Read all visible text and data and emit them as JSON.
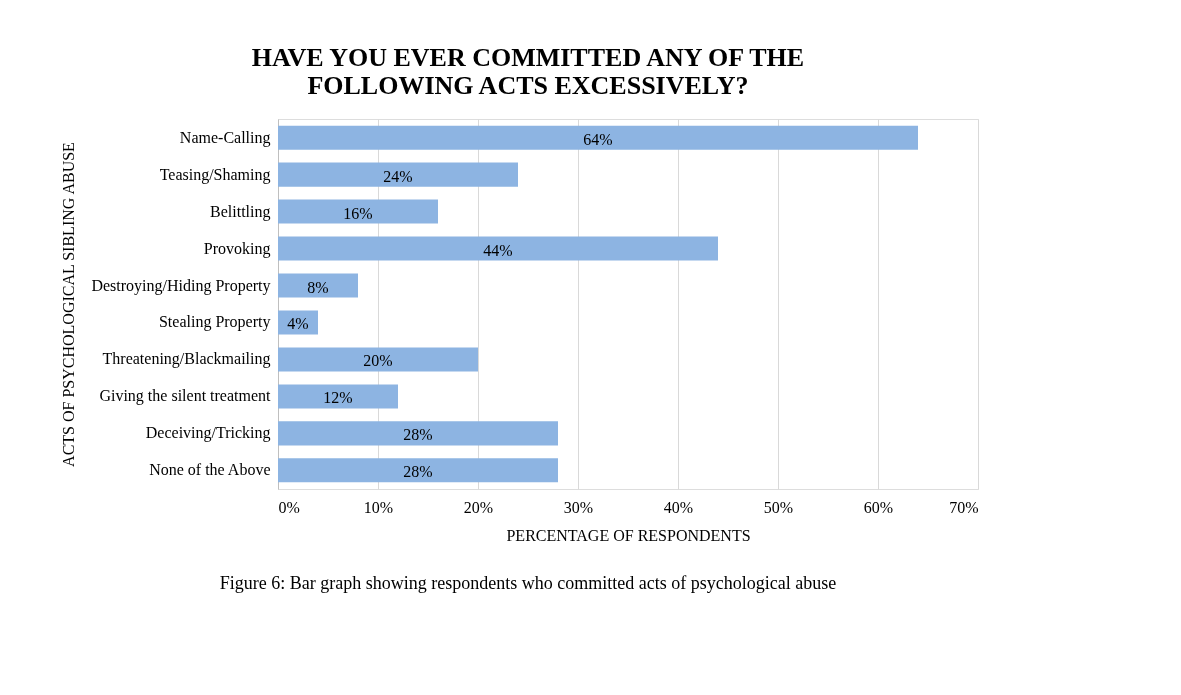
{
  "chart_data": {
    "type": "bar",
    "orientation": "horizontal",
    "title": "HAVE YOU EVER COMMITTED ANY OF THE FOLLOWING ACTS EXCESSIVELY?",
    "xlabel": "PERCENTAGE OF RESPONDENTS",
    "ylabel": "ACTS OF PSYCHOLOGICAL SIBLING ABUSE",
    "categories": [
      "Name-Calling",
      "Teasing/Shaming",
      "Belittling",
      "Provoking",
      "Destroying/Hiding Property",
      "Stealing Property",
      "Threatening/Blackmailing",
      "Giving the silent treatment",
      "Deceiving/Tricking",
      "None of the Above"
    ],
    "values": [
      64,
      24,
      16,
      44,
      8,
      4,
      20,
      12,
      28,
      28
    ],
    "value_labels": [
      "64%",
      "24%",
      "16%",
      "44%",
      "8%",
      "4%",
      "20%",
      "12%",
      "28%",
      "28%"
    ],
    "color": "#8db4e2",
    "xlim": [
      0,
      70
    ],
    "xticks": [
      {
        "value": 0,
        "label": "0%"
      },
      {
        "value": 10,
        "label": "10%"
      },
      {
        "value": 20,
        "label": "20%"
      },
      {
        "value": 30,
        "label": "30%"
      },
      {
        "value": 40,
        "label": "40%"
      },
      {
        "value": 50,
        "label": "50%"
      },
      {
        "value": 60,
        "label": "60%"
      },
      {
        "value": 70,
        "label": "70%"
      }
    ],
    "grid": "x",
    "annotations": [
      "Figure 6: Bar graph showing respondents who committed acts of psychological abuse"
    ]
  }
}
